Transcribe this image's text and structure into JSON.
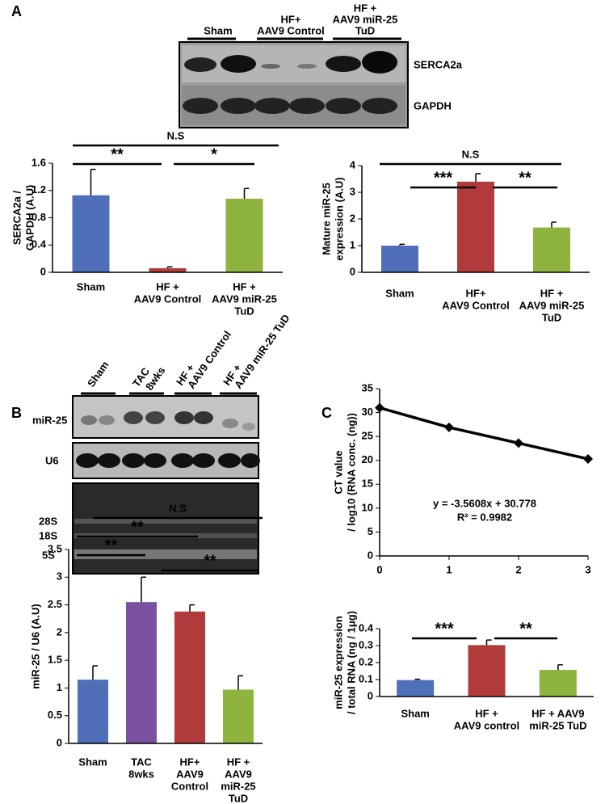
{
  "figure": {
    "panels": [
      "A",
      "B",
      "C"
    ],
    "blot_a": {
      "groups": [
        [
          "Sham"
        ],
        [
          "HF+",
          "AAV9 Control"
        ],
        [
          "HF +",
          "AAV9 miR-25",
          "TuD"
        ]
      ],
      "rows": [
        "SERCA2a",
        "GAPDH"
      ]
    },
    "blot_b": {
      "groups": [
        [
          "Sham"
        ],
        [
          "TAC",
          "8wks"
        ],
        [
          "HF +",
          "AAV9 Control"
        ],
        [
          "HF +",
          "AAV9 miR-25 TuD"
        ]
      ],
      "rows": [
        "miR-25",
        "U6"
      ],
      "markers": [
        "28S",
        "18S",
        "5S"
      ]
    }
  },
  "chart_data": [
    {
      "type": "bar",
      "ylabel": [
        "SERCA2a /",
        "GAPDH (A.U)"
      ],
      "categories": [
        [
          "Sham"
        ],
        [
          "HF +",
          "AAV9 Control"
        ],
        [
          "HF +",
          "AAV9 miR-25",
          "TuD"
        ]
      ],
      "values": [
        1.13,
        0.06,
        1.08
      ],
      "errors": [
        0.38,
        0.02,
        0.15
      ],
      "colors": [
        "#4f6fb8",
        "#b13a3a",
        "#8fb33f"
      ],
      "ylim": [
        0,
        1.6
      ],
      "yticks": [
        0,
        0.4,
        0.8,
        1.2,
        1.6
      ],
      "grid": false,
      "annotations": [
        "N.S",
        "**",
        "*"
      ]
    },
    {
      "type": "bar",
      "ylabel": [
        "Mature miR-25",
        "expression (A.U)"
      ],
      "categories": [
        [
          "Sham"
        ],
        [
          "HF+",
          "AAV9 Control"
        ],
        [
          "HF +",
          "AAV9 miR-25",
          "TuD"
        ]
      ],
      "values": [
        1.0,
        3.4,
        1.68
      ],
      "errors": [
        0.05,
        0.3,
        0.2
      ],
      "colors": [
        "#4f6fb8",
        "#b13a3a",
        "#8fb33f"
      ],
      "ylim": [
        0,
        4
      ],
      "yticks": [
        0,
        1,
        2,
        3,
        4
      ],
      "grid": false,
      "annotations": [
        "N.S",
        "***",
        "**"
      ]
    },
    {
      "type": "bar",
      "ylabel": [
        "miR-25 / U6 (A.U)"
      ],
      "categories": [
        [
          "Sham"
        ],
        [
          "TAC",
          "8wks"
        ],
        [
          "HF+",
          "AAV9",
          "Control"
        ],
        [
          "HF +",
          "AAV9",
          "miR-25",
          "TuD"
        ]
      ],
      "values": [
        1.15,
        2.55,
        2.38,
        0.97
      ],
      "errors": [
        0.25,
        0.45,
        0.12,
        0.25
      ],
      "colors": [
        "#4f6fb8",
        "#7b52a0",
        "#b13a3a",
        "#8fb33f"
      ],
      "ylim": [
        0,
        3.5
      ],
      "yticks": [
        0,
        0.5,
        1,
        1.5,
        2,
        2.5,
        3,
        3.5
      ],
      "grid": false,
      "annotations": [
        "N.S",
        "**",
        "**",
        "**"
      ]
    },
    {
      "type": "line",
      "ylabel": [
        "CT value",
        "/ log10 (RNA conc. (ng))"
      ],
      "x": [
        0,
        1,
        2,
        3
      ],
      "y": [
        31,
        26.9,
        23.6,
        20.3
      ],
      "color": "#000000",
      "xlim": [
        0,
        3
      ],
      "xticks": [
        0,
        1,
        2,
        3
      ],
      "ylim": [
        0,
        35
      ],
      "yticks": [
        0,
        5,
        10,
        15,
        20,
        25,
        30,
        35
      ],
      "grid": false,
      "annotations": [
        "y = -3.5608x + 30.778",
        "R² = 0.9982"
      ]
    },
    {
      "type": "bar",
      "ylabel": [
        "miR-25  expression",
        "/ total RNA (ng / 1μg)"
      ],
      "categories": [
        [
          "Sham"
        ],
        [
          "HF +",
          "AAV9 control"
        ],
        [
          "HF + AAV9",
          "miR-25 TuD"
        ]
      ],
      "values": [
        0.097,
        0.303,
        0.157
      ],
      "errors": [
        0.005,
        0.03,
        0.03
      ],
      "colors": [
        "#4f6fb8",
        "#b13a3a",
        "#8fb33f"
      ],
      "ylim": [
        0,
        0.4
      ],
      "yticks": [
        0,
        0.1,
        0.2,
        0.3,
        0.4
      ],
      "grid": false,
      "annotations": [
        "***",
        "**"
      ]
    }
  ]
}
